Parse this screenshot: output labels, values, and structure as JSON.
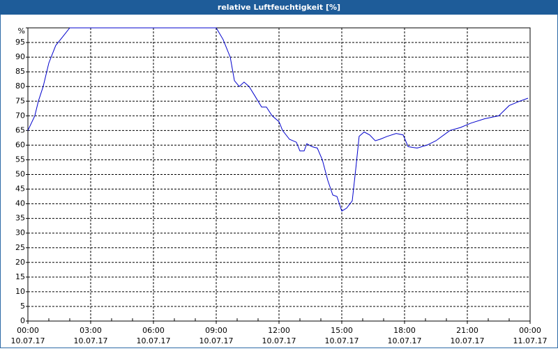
{
  "chart_data": {
    "type": "line",
    "title": "relative Luftfeuchtigkeit [%]",
    "color": "#0000cc",
    "grid": true,
    "x": [
      0,
      0.33,
      0.5,
      0.73,
      1,
      1.33,
      1.67,
      2,
      9,
      9.33,
      9.67,
      9.87,
      10.1,
      10.33,
      10.57,
      10.83,
      11.17,
      11.4,
      11.67,
      12,
      12.17,
      12.5,
      12.83,
      13,
      13.2,
      13.33,
      13.57,
      13.83,
      14.07,
      14.33,
      14.57,
      14.77,
      15,
      15.23,
      15.5,
      15.67,
      15.83,
      16.07,
      16.33,
      16.6,
      16.83,
      17.17,
      17.6,
      17.93,
      18.17,
      18.6,
      19.07,
      19.5,
      20.17,
      20.67,
      21.17,
      21.83,
      22.5,
      23,
      23.5,
      23.9
    ],
    "values": [
      65,
      70,
      75,
      80,
      88,
      94,
      97,
      100,
      100,
      96,
      90,
      82,
      80,
      81.5,
      80,
      77,
      73,
      73,
      70,
      68,
      65,
      62,
      61,
      58,
      58,
      60.5,
      59.5,
      59,
      55,
      48,
      43,
      42.5,
      37.5,
      38.5,
      41,
      52,
      63,
      64.5,
      63.5,
      61.5,
      62,
      63,
      64,
      63.5,
      59.5,
      59,
      60,
      61.5,
      65,
      66,
      67.5,
      69,
      70,
      73.5,
      75,
      76
    ],
    "xlim": [
      0,
      24
    ],
    "xticks": [
      {
        "value": 0,
        "label": "00:00",
        "date": "10.07.17"
      },
      {
        "value": 3,
        "label": "03:00",
        "date": "10.07.17"
      },
      {
        "value": 6,
        "label": "06:00",
        "date": "10.07.17"
      },
      {
        "value": 9,
        "label": "09:00",
        "date": "10.07.17"
      },
      {
        "value": 12,
        "label": "12:00",
        "date": "10.07.17"
      },
      {
        "value": 15,
        "label": "15:00",
        "date": "10.07.17"
      },
      {
        "value": 18,
        "label": "18:00",
        "date": "10.07.17"
      },
      {
        "value": 21,
        "label": "21:00",
        "date": "10.07.17"
      },
      {
        "value": 24,
        "label": "00:00",
        "date": "11.07.17"
      }
    ],
    "ylim": [
      0,
      100
    ],
    "yticks": [
      0,
      5,
      10,
      15,
      20,
      25,
      30,
      35,
      40,
      45,
      50,
      55,
      60,
      65,
      70,
      75,
      80,
      85,
      90,
      95,
      {
        "value": 100,
        "label": "%"
      }
    ]
  }
}
